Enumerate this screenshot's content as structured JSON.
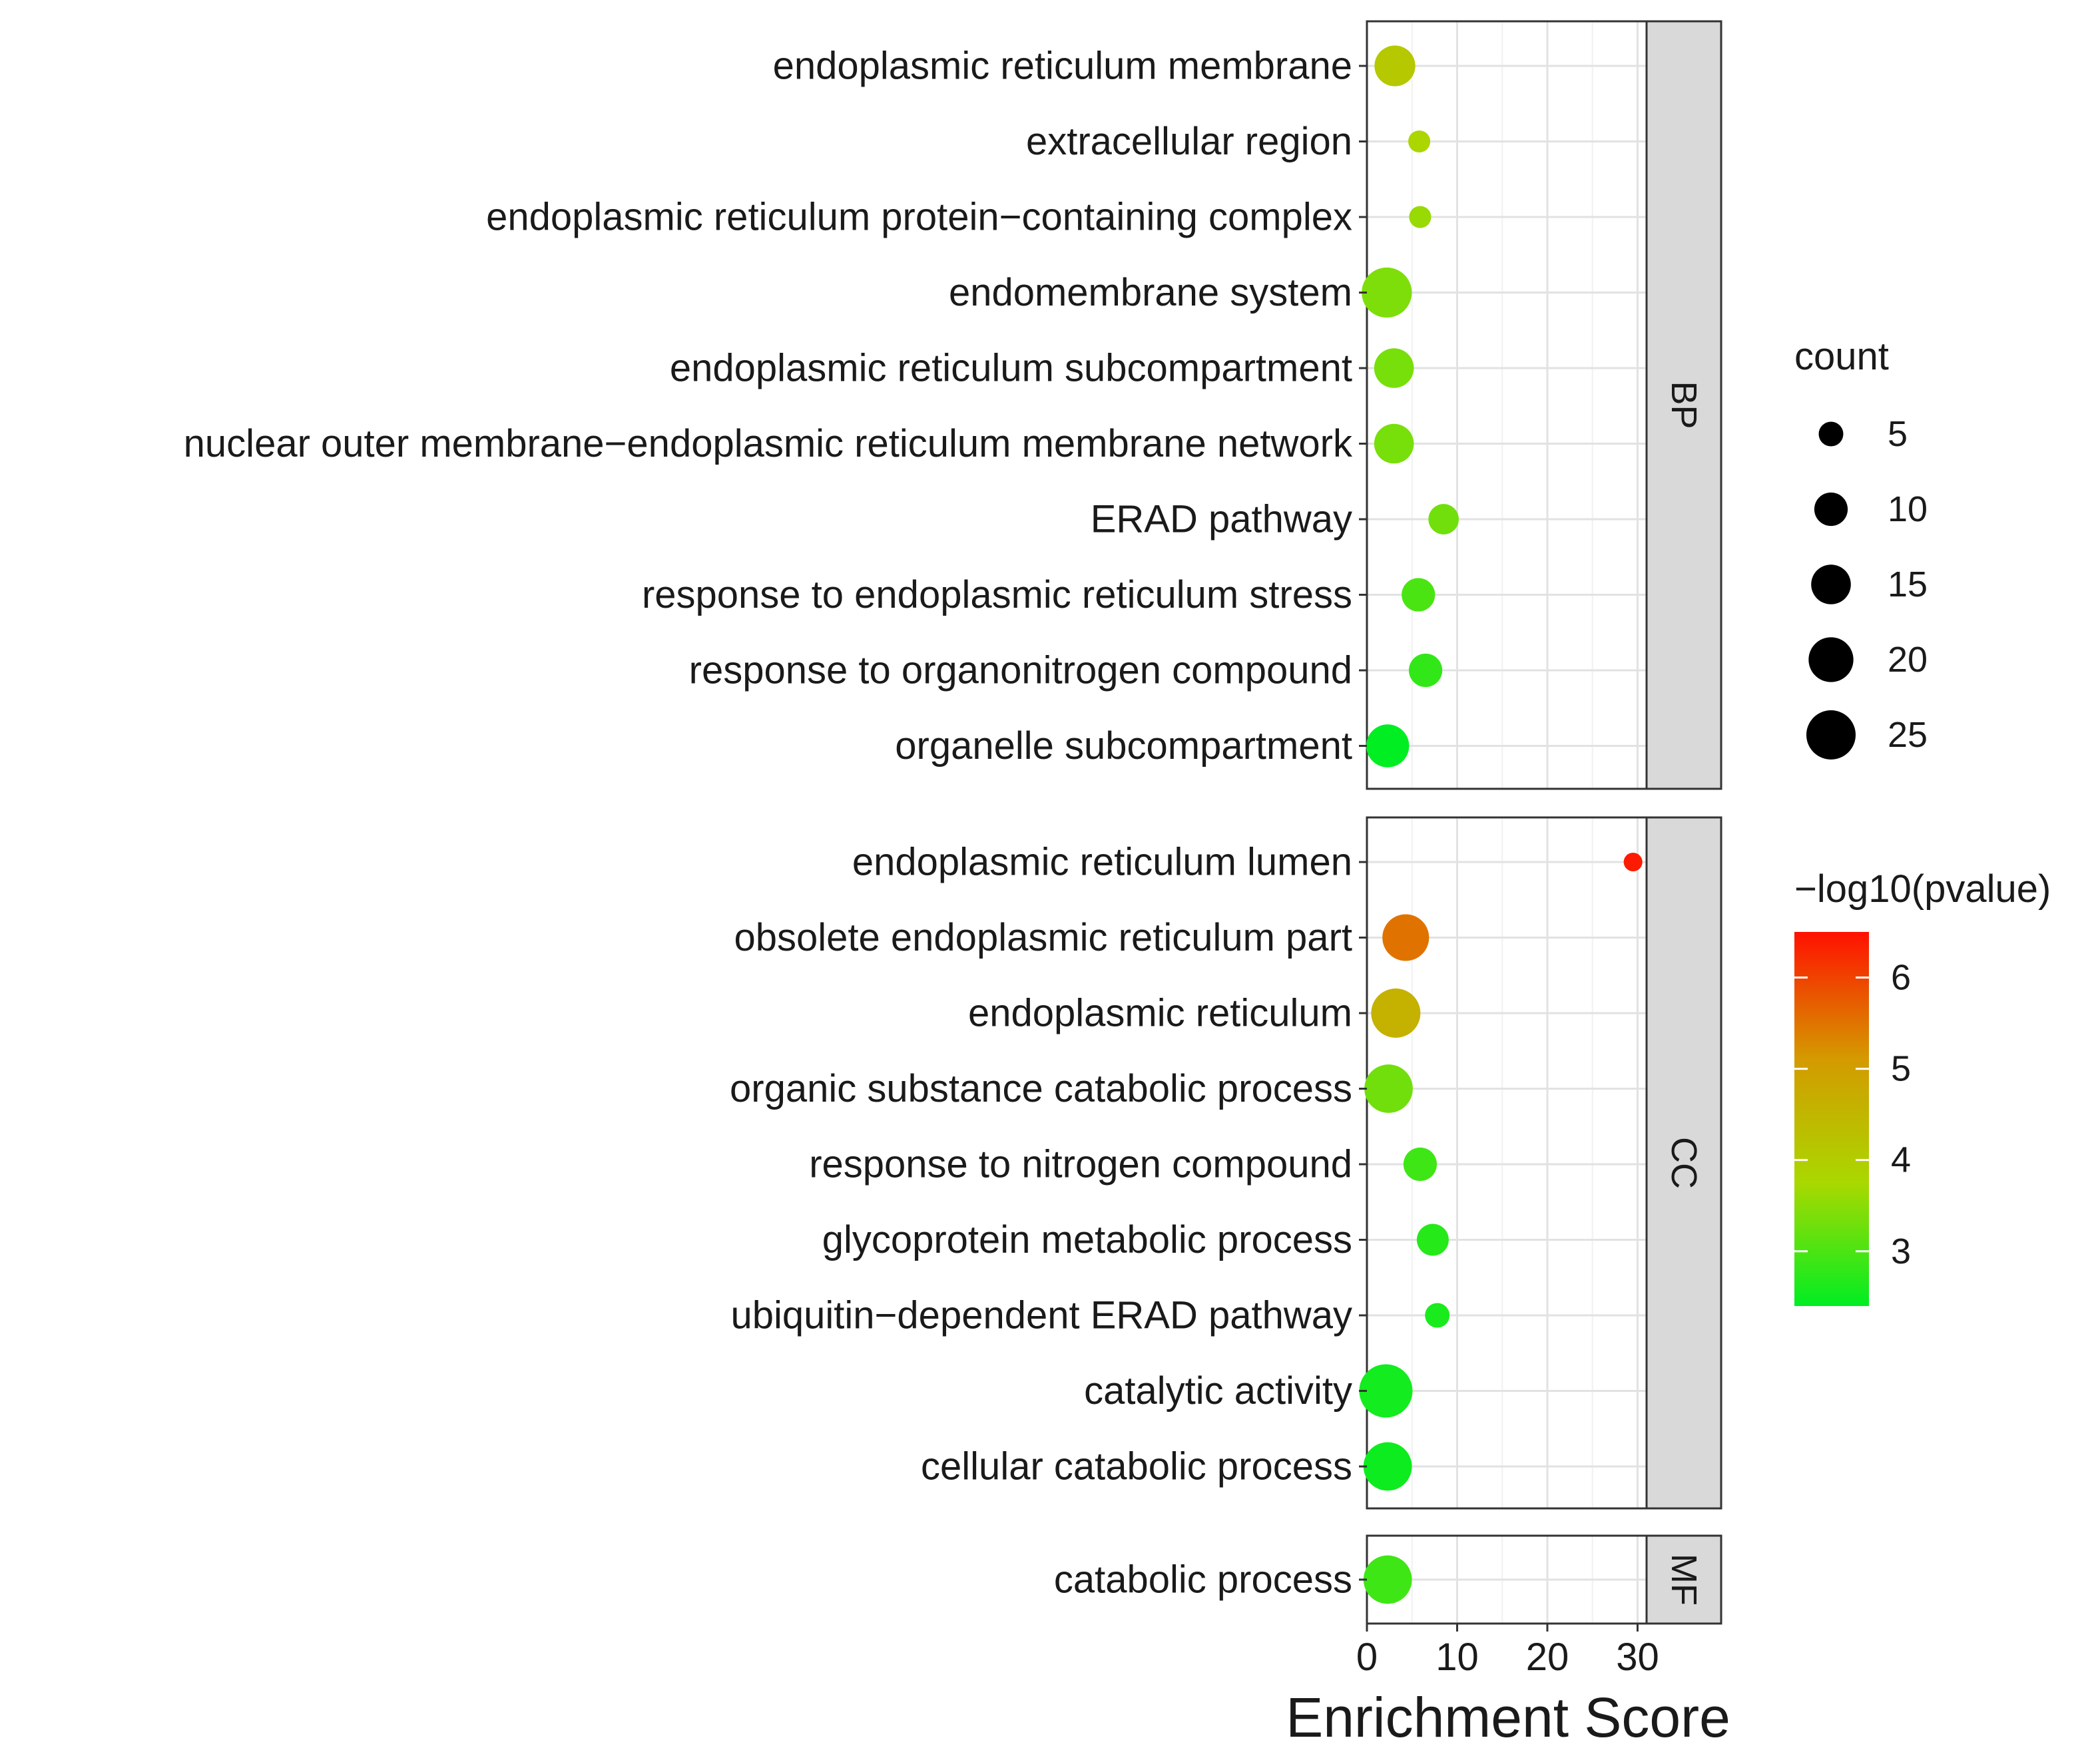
{
  "chart_data": {
    "type": "scatter",
    "subtype": "faceted dot plot",
    "x_label": "Enrichment Score",
    "x_ticks": [
      0,
      10,
      20,
      30
    ],
    "xlim": [
      0,
      31
    ],
    "grid": true,
    "size_legend": {
      "title": "count",
      "values": [
        5,
        10,
        15,
        20,
        25
      ]
    },
    "color_legend": {
      "title": "−log10(pvalue)",
      "min": 2.4,
      "max": 6.5,
      "ticks": [
        3,
        4,
        5,
        6
      ],
      "low_color": "#00ee22",
      "mid_color": "#aad800",
      "mid2_color": "#d49a00",
      "high_color": "#ff1100"
    },
    "facets": [
      {
        "name": "BP",
        "terms": [
          {
            "term": "endoplasmic reticulum membrane",
            "score": 3.1,
            "count": 16,
            "neglog10p": 4.1
          },
          {
            "term": "extracellular region",
            "score": 5.8,
            "count": 4,
            "neglog10p": 3.8
          },
          {
            "term": "endoplasmic reticulum protein−containing complex",
            "score": 5.9,
            "count": 4,
            "neglog10p": 3.6
          },
          {
            "term": "endomembrane system",
            "score": 2.2,
            "count": 26,
            "neglog10p": 3.4
          },
          {
            "term": "endoplasmic reticulum subcompartment",
            "score": 3.0,
            "count": 15,
            "neglog10p": 3.35
          },
          {
            "term": "nuclear outer membrane−endoplasmic reticulum membrane network",
            "score": 3.0,
            "count": 15,
            "neglog10p": 3.35
          },
          {
            "term": "ERAD pathway",
            "score": 8.5,
            "count": 8,
            "neglog10p": 3.3
          },
          {
            "term": "response to endoplasmic reticulum stress",
            "score": 5.7,
            "count": 10,
            "neglog10p": 3.0
          },
          {
            "term": "response to organonitrogen compound",
            "score": 6.5,
            "count": 10,
            "neglog10p": 2.8
          },
          {
            "term": "organelle subcompartment",
            "score": 2.3,
            "count": 18,
            "neglog10p": 2.4
          }
        ]
      },
      {
        "name": "CC",
        "terms": [
          {
            "term": "endoplasmic reticulum lumen",
            "score": 29.5,
            "count": 3,
            "neglog10p": 6.4
          },
          {
            "term": "obsolete endoplasmic reticulum part",
            "score": 4.3,
            "count": 22,
            "neglog10p": 5.5
          },
          {
            "term": "endoplasmic reticulum",
            "score": 3.2,
            "count": 25,
            "neglog10p": 4.6
          },
          {
            "term": "organic substance catabolic process",
            "score": 2.4,
            "count": 24,
            "neglog10p": 3.3
          },
          {
            "term": "response to nitrogen compound",
            "score": 5.9,
            "count": 10,
            "neglog10p": 2.9
          },
          {
            "term": "glycoprotein metabolic process",
            "score": 7.3,
            "count": 9,
            "neglog10p": 2.7
          },
          {
            "term": "ubiquitin−dependent ERAD pathway",
            "score": 7.8,
            "count": 5,
            "neglog10p": 2.6
          },
          {
            "term": "catalytic activity",
            "score": 2.1,
            "count": 30,
            "neglog10p": 2.55
          },
          {
            "term": "cellular catabolic process",
            "score": 2.3,
            "count": 24,
            "neglog10p": 2.5
          }
        ]
      },
      {
        "name": "MF",
        "terms": [
          {
            "term": "catabolic process",
            "score": 2.3,
            "count": 24,
            "neglog10p": 2.9
          }
        ]
      }
    ]
  }
}
